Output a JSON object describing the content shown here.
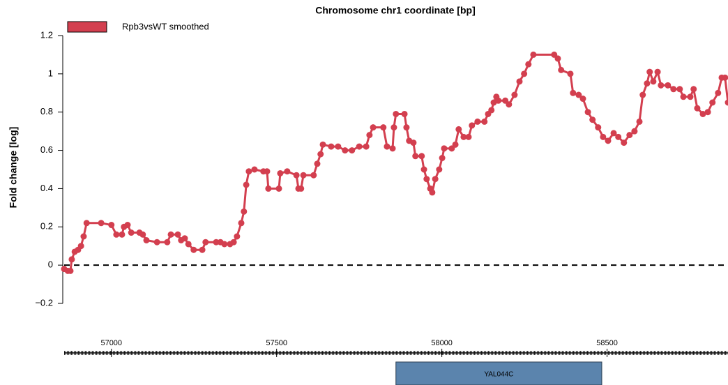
{
  "chart_data": {
    "type": "line",
    "title": "Chromosome chr1 coordinate [bp]",
    "ylabel": "Fold change [log]",
    "x": [
      56857,
      56868,
      56876,
      56880,
      56889,
      56899,
      56908,
      56916,
      56925,
      56969,
      57000,
      57015,
      57032,
      57038,
      57049,
      57060,
      57085,
      57095,
      57106,
      57138,
      57169,
      57180,
      57201,
      57211,
      57222,
      57233,
      57249,
      57275,
      57285,
      57317,
      57330,
      57342,
      57359,
      57370,
      57380,
      57393,
      57401,
      57408,
      57416,
      57433,
      57460,
      57471,
      57475,
      57507,
      57511,
      57532,
      57560,
      57566,
      57574,
      57581,
      57612,
      57623,
      57633,
      57640,
      57665,
      57686,
      57707,
      57728,
      57750,
      57771,
      57781,
      57792,
      57823,
      57834,
      57851,
      57855,
      57861,
      57887,
      57893,
      57901,
      57914,
      57920,
      57939,
      57946,
      57954,
      57965,
      57971,
      57980,
      57992,
      58001,
      58007,
      58030,
      58041,
      58051,
      58066,
      58081,
      58091,
      58108,
      58129,
      58140,
      58150,
      58157,
      58165,
      58171,
      58192,
      58203,
      58220,
      58235,
      58249,
      58262,
      58277,
      58340,
      58351,
      58361,
      58389,
      58397,
      58414,
      58427,
      58442,
      58456,
      58473,
      58488,
      58503,
      58520,
      58534,
      58551,
      58568,
      58583,
      58598,
      58608,
      58621,
      58629,
      58640,
      58653,
      58663,
      58684,
      58701,
      58720,
      58731,
      58752,
      58762,
      58773,
      58790,
      58805,
      58819,
      58836,
      58847,
      58857,
      58866
    ],
    "series": [
      {
        "name": "Rpb3vsWT smoothed",
        "color": "#d33f4f",
        "values": [
          -0.02,
          -0.03,
          -0.03,
          0.03,
          0.07,
          0.08,
          0.1,
          0.15,
          0.22,
          0.22,
          0.21,
          0.16,
          0.16,
          0.2,
          0.21,
          0.17,
          0.17,
          0.16,
          0.13,
          0.12,
          0.12,
          0.16,
          0.16,
          0.13,
          0.14,
          0.11,
          0.08,
          0.08,
          0.12,
          0.12,
          0.12,
          0.11,
          0.11,
          0.12,
          0.15,
          0.22,
          0.28,
          0.42,
          0.49,
          0.5,
          0.49,
          0.49,
          0.4,
          0.4,
          0.48,
          0.49,
          0.47,
          0.4,
          0.4,
          0.47,
          0.47,
          0.53,
          0.58,
          0.63,
          0.62,
          0.62,
          0.6,
          0.6,
          0.62,
          0.62,
          0.68,
          0.72,
          0.72,
          0.62,
          0.61,
          0.72,
          0.79,
          0.79,
          0.72,
          0.65,
          0.64,
          0.57,
          0.57,
          0.5,
          0.45,
          0.4,
          0.38,
          0.45,
          0.5,
          0.56,
          0.61,
          0.61,
          0.63,
          0.71,
          0.67,
          0.67,
          0.73,
          0.75,
          0.75,
          0.79,
          0.81,
          0.85,
          0.88,
          0.86,
          0.86,
          0.84,
          0.89,
          0.96,
          1.0,
          1.05,
          1.1,
          1.1,
          1.08,
          1.02,
          1.0,
          0.9,
          0.89,
          0.87,
          0.8,
          0.76,
          0.72,
          0.67,
          0.65,
          0.69,
          0.67,
          0.64,
          0.68,
          0.7,
          0.75,
          0.89,
          0.95,
          1.01,
          0.96,
          1.01,
          0.94,
          0.94,
          0.92,
          0.92,
          0.88,
          0.88,
          0.92,
          0.82,
          0.79,
          0.8,
          0.85,
          0.9,
          0.98,
          0.98,
          0.85
        ]
      }
    ],
    "xlim": [
      56857,
      58866
    ],
    "xticks": [
      57000,
      57500,
      58000,
      58500
    ],
    "ylim": [
      -0.2,
      1.2
    ],
    "yticks": [
      {
        "value": -0.2,
        "label": "−0.2"
      },
      0,
      0.2,
      0.4,
      0.6,
      0.8,
      1,
      1.2
    ],
    "hline": 0,
    "genes": [
      {
        "name": "YAL044C",
        "start": 57861,
        "end": 58484
      }
    ]
  }
}
